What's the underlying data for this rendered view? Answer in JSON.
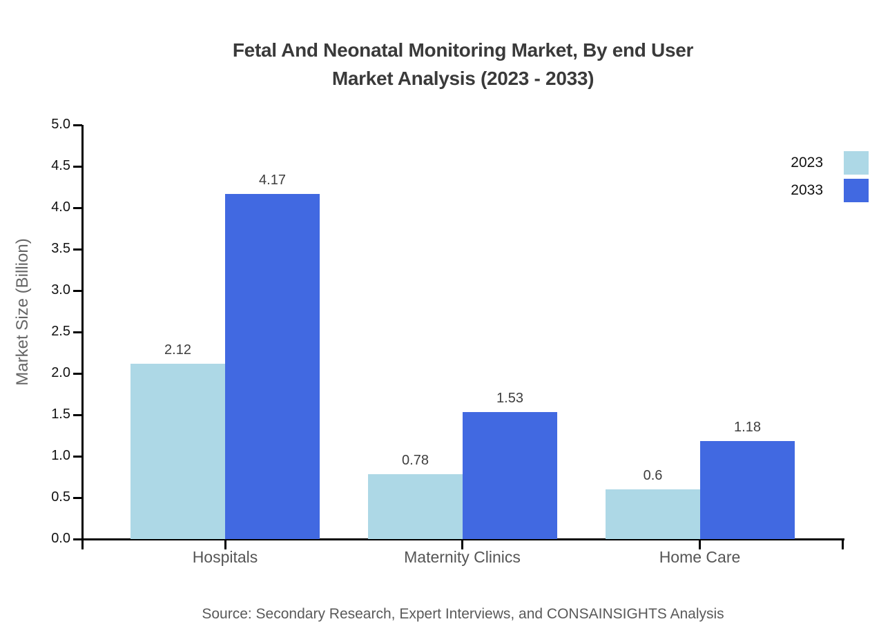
{
  "title": {
    "line1": "Fetal And Neonatal Monitoring Market, By end User",
    "line2": "Market Analysis (2023 - 2033)"
  },
  "source_note": "Source: Secondary Research, Expert Interviews, and CONSAINSIGHTS Analysis",
  "chart_data": {
    "type": "bar",
    "title": "Fetal And Neonatal Monitoring Market, By end User Market Analysis (2023 - 2033)",
    "categories": [
      "Hospitals",
      "Maternity Clinics",
      "Home Care"
    ],
    "series": [
      {
        "name": "2023",
        "color": "#ADD8E6",
        "values": [
          2.12,
          0.78,
          0.6
        ]
      },
      {
        "name": "2033",
        "color": "#4169E1",
        "values": [
          4.17,
          1.53,
          1.18
        ]
      }
    ],
    "bar_value_labels": {
      "2023": [
        "2.12",
        "0.78",
        "0.6"
      ],
      "2033": [
        "4.17",
        "1.53",
        "1.18"
      ]
    },
    "xlabel": "",
    "ylabel": "Market Size (Billion)",
    "ylim": [
      0,
      5
    ],
    "ytick_step": 0.5,
    "ytick_labels": [
      "0.0",
      "0.5",
      "1.0",
      "1.5",
      "2.0",
      "2.5",
      "3.0",
      "3.5",
      "4.0",
      "4.5",
      "5.0"
    ],
    "grid": false,
    "legend_position": "top-right"
  },
  "colors": {
    "series_2023": "#ADD8E6",
    "series_2033": "#4169E1",
    "axis": "#000000",
    "title_text": "#3a3a3a",
    "category_label": "#555555",
    "value_label": "#3d3d3d",
    "source_text": "#595959",
    "background": "#ffffff"
  }
}
